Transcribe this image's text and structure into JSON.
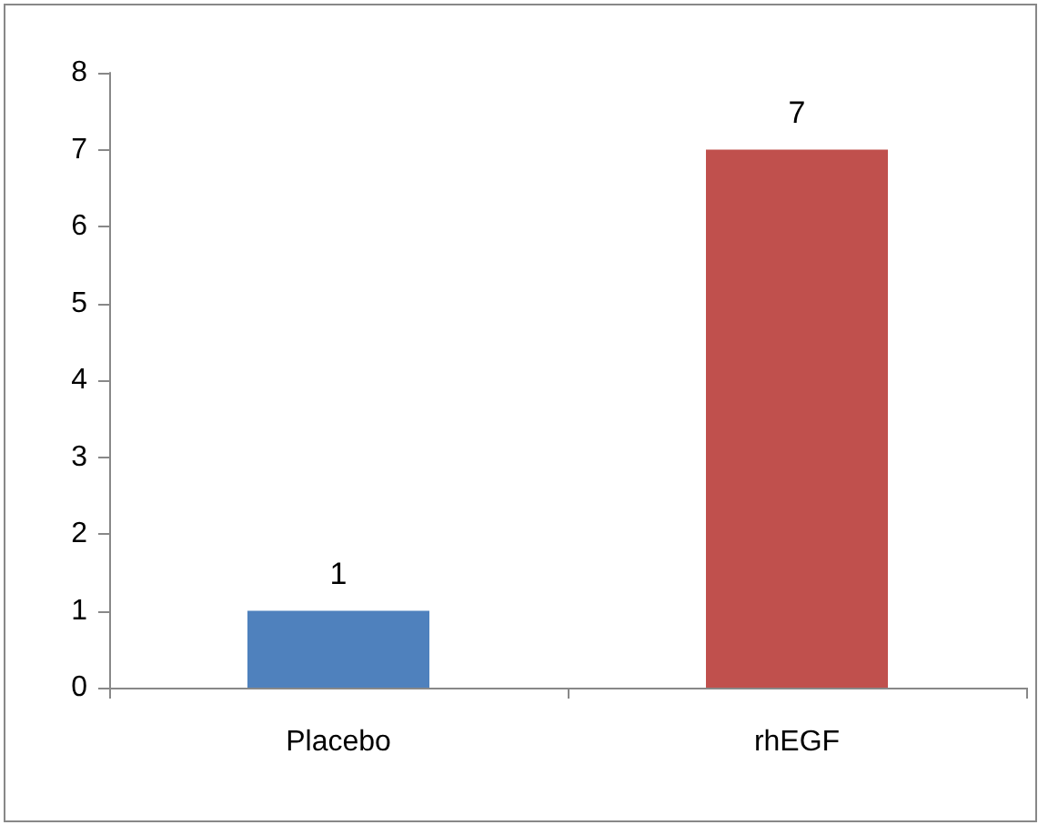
{
  "chart_data": {
    "type": "bar",
    "categories": [
      "Placebo",
      "rhEGF"
    ],
    "values": [
      1,
      7
    ],
    "colors": [
      "#4f81bd",
      "#c0504d"
    ],
    "ylim": [
      0,
      8
    ],
    "yticks": [
      0,
      1,
      2,
      3,
      4,
      5,
      6,
      7,
      8
    ],
    "grid": false,
    "data_labels": true
  }
}
